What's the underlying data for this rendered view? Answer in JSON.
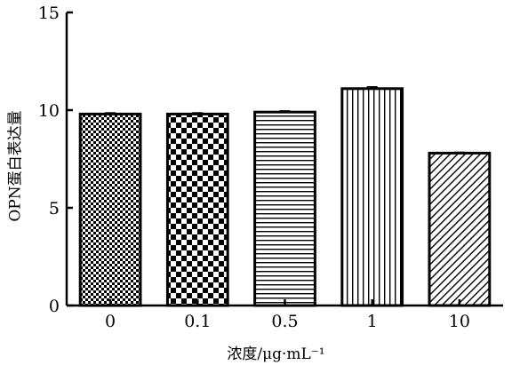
{
  "chart_data": {
    "type": "bar",
    "categories": [
      "0",
      "0.1",
      "0.5",
      "1",
      "10"
    ],
    "values": [
      9.8,
      9.8,
      9.9,
      11.1,
      7.8
    ],
    "errors": [
      0.05,
      0.05,
      0.05,
      0.08,
      0.03
    ],
    "patterns": [
      "fine-checker",
      "coarse-checker",
      "horizontal-lines",
      "vertical-lines",
      "diagonal-hatch"
    ],
    "title": "",
    "xlabel": "浓度/μg·mL⁻¹",
    "ylabel": "OPN蛋白表达量",
    "ylim": [
      0,
      15
    ],
    "yticks": [
      0,
      5,
      10,
      15
    ],
    "grid": false,
    "legend": "none"
  }
}
